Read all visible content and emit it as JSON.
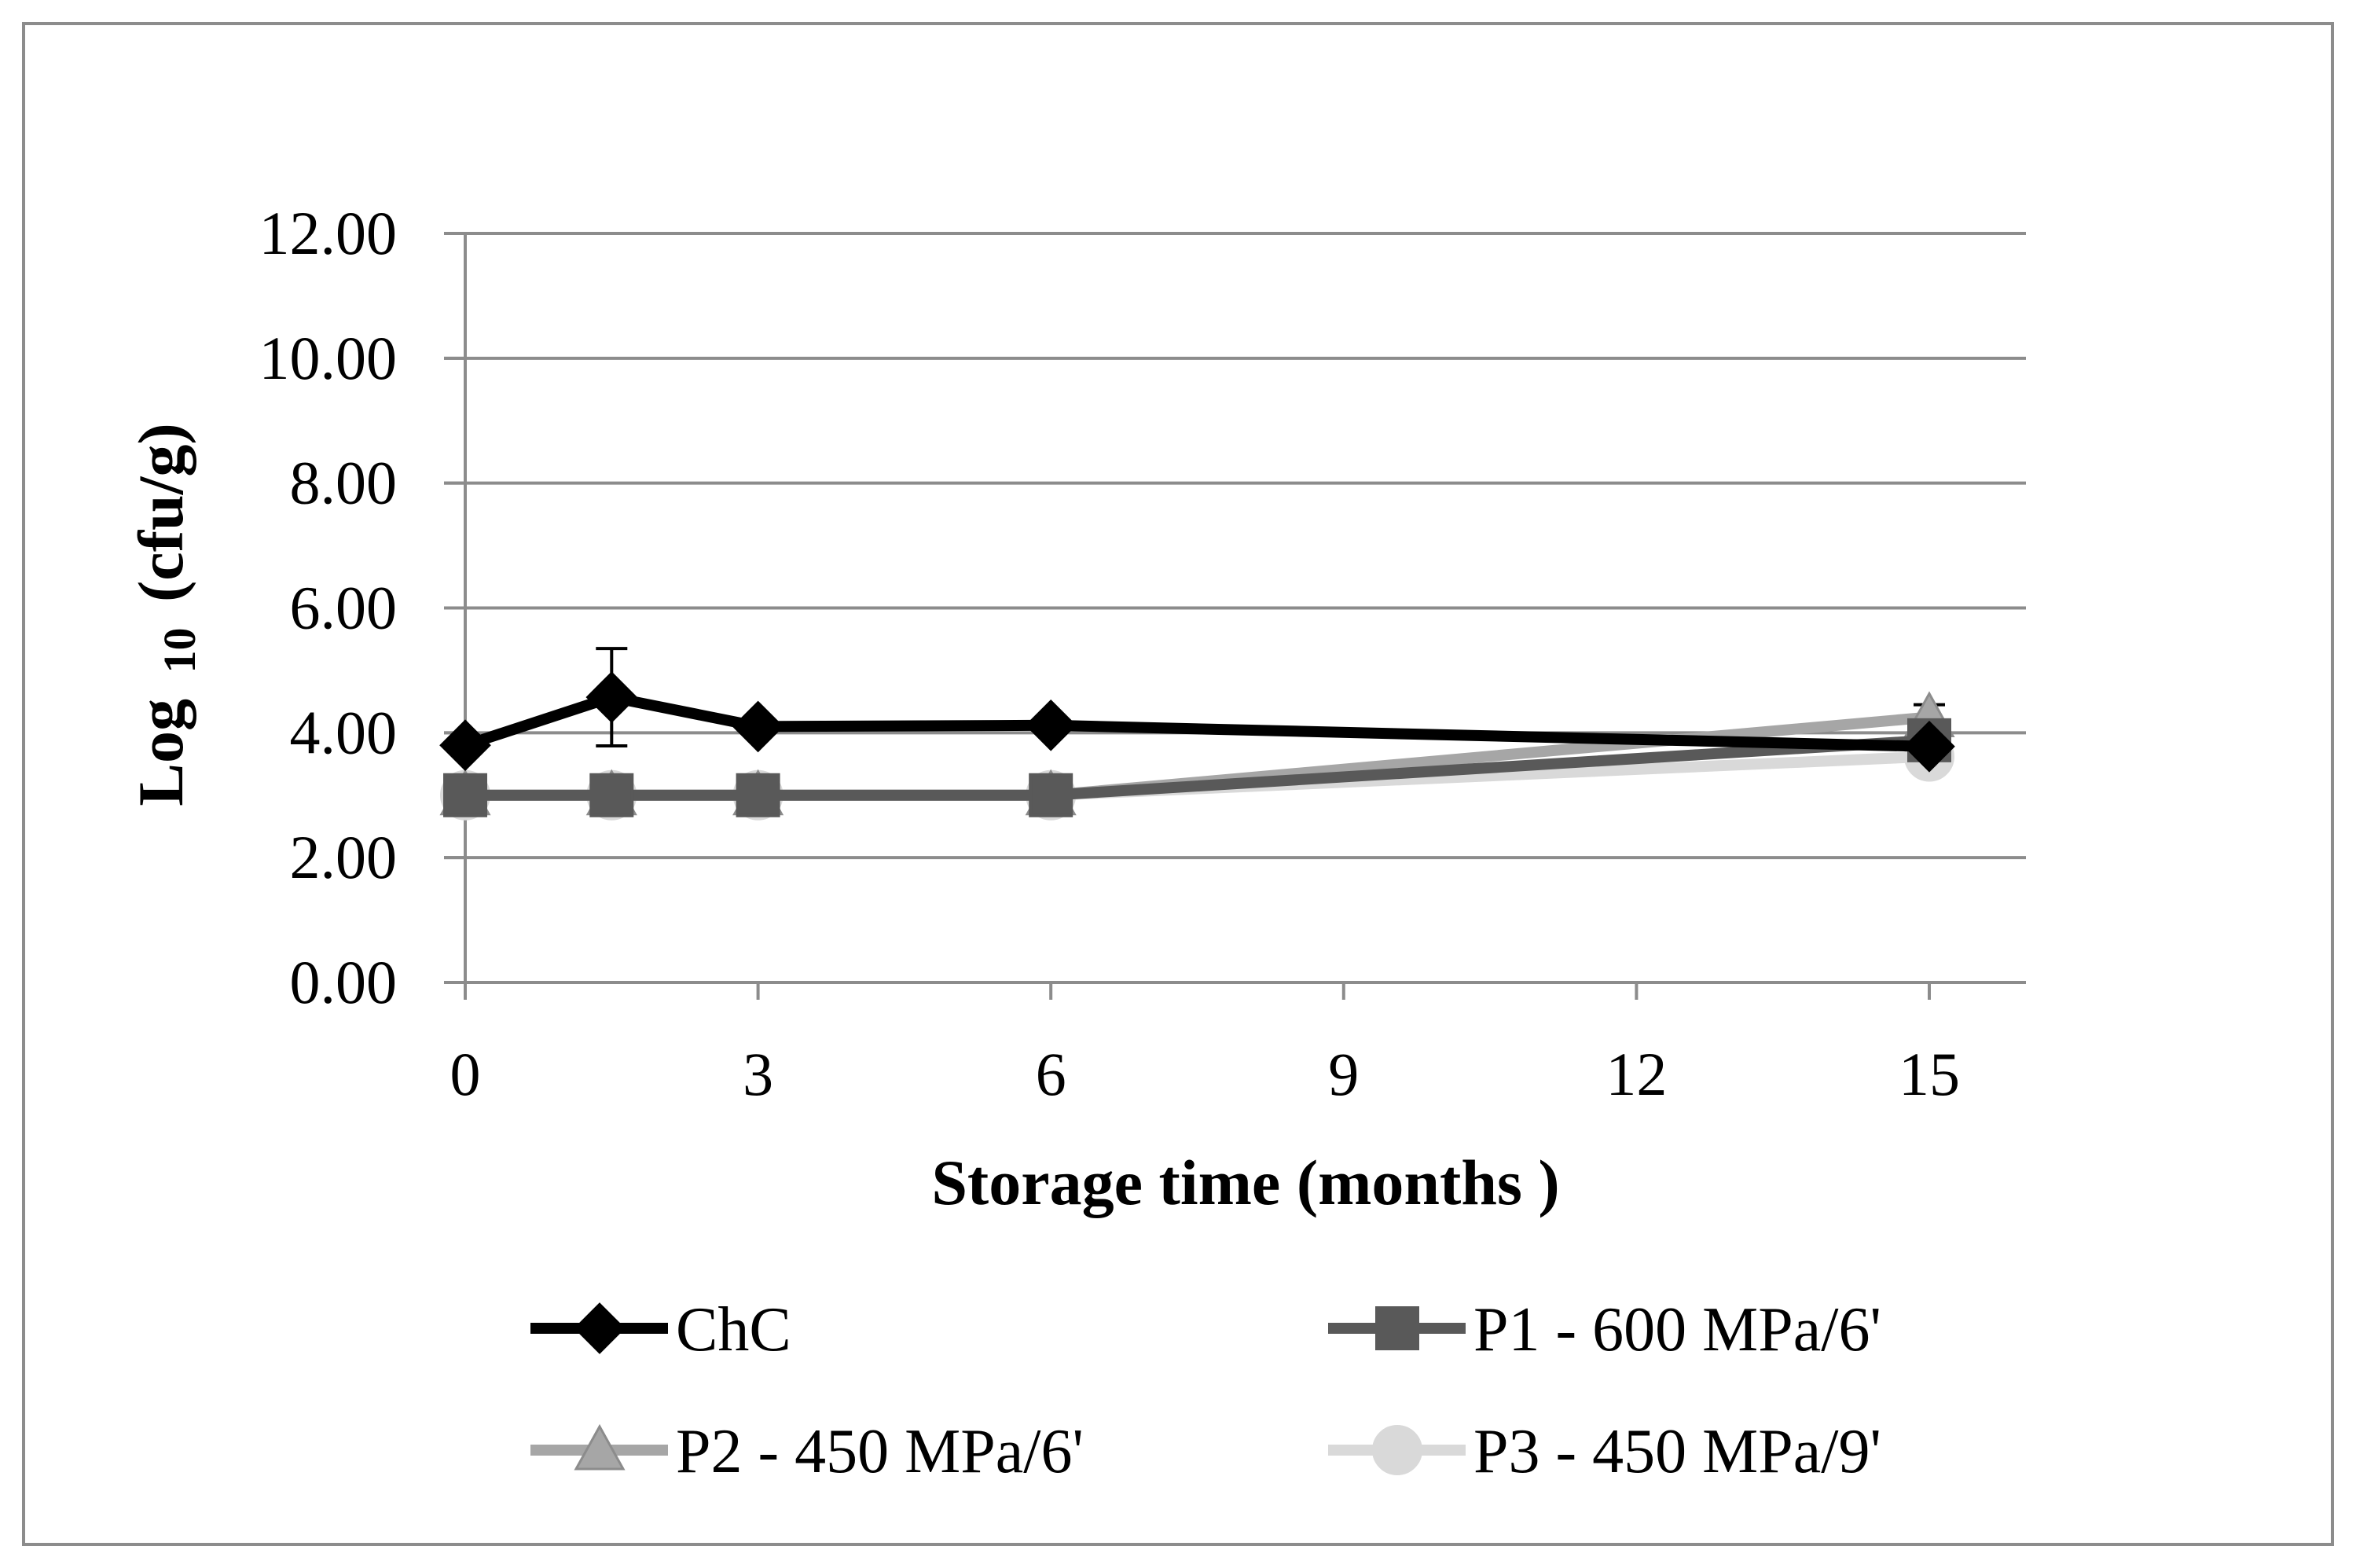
{
  "chart_data": {
    "type": "line",
    "title": "",
    "xlabel": "Storage time (months )",
    "ylabel": {
      "base": "Log",
      "subscript": "10",
      "unit": "(cfu/g)"
    },
    "xlim": [
      0,
      16
    ],
    "ylim": [
      0,
      12
    ],
    "x_ticks": [
      "0",
      "3",
      "6",
      "9",
      "12",
      "15"
    ],
    "y_ticks": [
      "0.00",
      "2.00",
      "4.00",
      "6.00",
      "8.00",
      "10.00",
      "12.00"
    ],
    "grid": "horizontal",
    "legend_position": "bottom",
    "series": [
      {
        "name": "ChC",
        "marker": "diamond",
        "color": "#000000",
        "x": [
          0,
          1.5,
          3,
          6,
          15
        ],
        "y": [
          3.8,
          4.57,
          4.1,
          4.12,
          3.78
        ],
        "error": [
          0,
          0.78,
          0,
          0,
          0
        ]
      },
      {
        "name": "P1 - 600 MPa/6'",
        "marker": "square",
        "color": "#595959",
        "x": [
          0,
          1.5,
          3,
          6,
          15
        ],
        "y": [
          3.0,
          3.0,
          3.0,
          3.0,
          3.88
        ],
        "error": [
          0,
          0,
          0,
          0,
          0
        ]
      },
      {
        "name": "P2 - 450 MPa/6'",
        "marker": "triangle",
        "color": "#a6a6a6",
        "x": [
          0,
          1.5,
          3,
          6,
          15
        ],
        "y": [
          3.0,
          3.0,
          3.0,
          3.0,
          4.25
        ],
        "error": [
          0,
          0,
          0,
          0,
          0.2
        ]
      },
      {
        "name": "P3 - 450 MPa/9'",
        "marker": "circle",
        "color": "#d9d9d9",
        "x": [
          0,
          1.5,
          3,
          6,
          15
        ],
        "y": [
          3.0,
          3.0,
          3.0,
          3.0,
          3.62
        ],
        "error": [
          0,
          0,
          0,
          0,
          0
        ]
      }
    ]
  }
}
